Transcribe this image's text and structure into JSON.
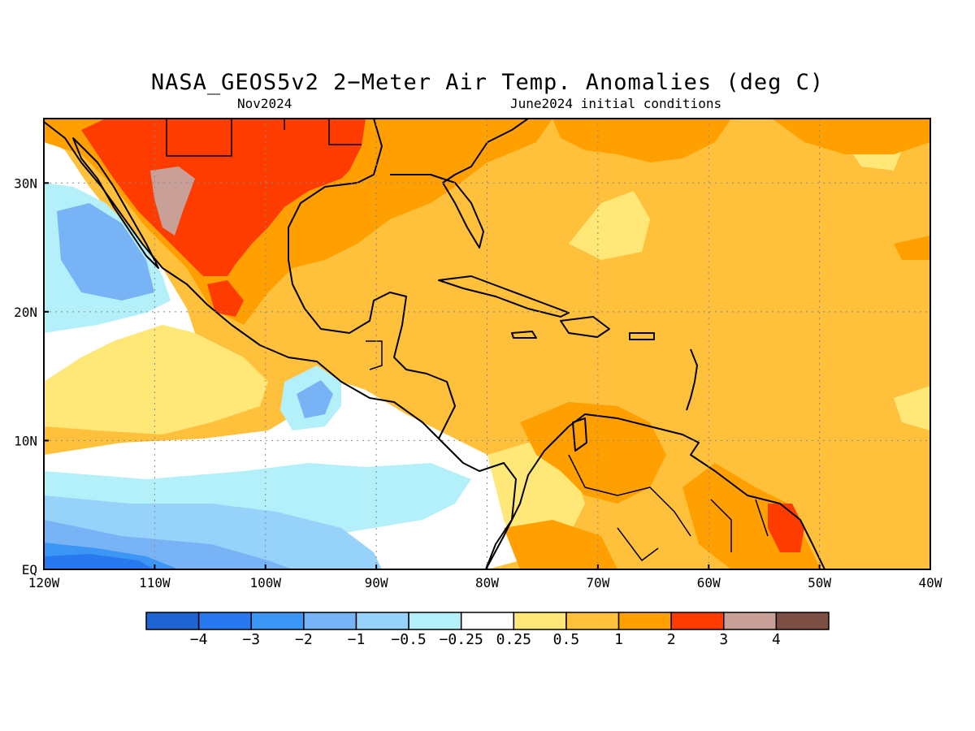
{
  "title": "NASA_GEOS5v2 2−Meter Air Temp. Anomalies (deg C)",
  "subtitle_left": "Nov2024",
  "subtitle_right": "June2024 initial conditions",
  "map": {
    "lon_range": [
      -120,
      -40
    ],
    "lat_range": [
      0,
      35
    ],
    "x_ticks": [
      {
        "lon": -120,
        "label": "120W"
      },
      {
        "lon": -110,
        "label": "110W"
      },
      {
        "lon": -100,
        "label": "100W"
      },
      {
        "lon": -90,
        "label": "90W"
      },
      {
        "lon": -80,
        "label": "80W"
      },
      {
        "lon": -70,
        "label": "70W"
      },
      {
        "lon": -60,
        "label": "60W"
      },
      {
        "lon": -50,
        "label": "50W"
      },
      {
        "lon": -40,
        "label": "40W"
      }
    ],
    "y_ticks": [
      {
        "lat": 0,
        "label": "EQ"
      },
      {
        "lat": 10,
        "label": "10N"
      },
      {
        "lat": 20,
        "label": "20N"
      },
      {
        "lat": 30,
        "label": "30N"
      }
    ],
    "grid": "dotted"
  },
  "colorbar": {
    "colors": [
      "#1e64d2",
      "#2878f0",
      "#3c96f5",
      "#78b4f5",
      "#96d2fa",
      "#b4f0fa",
      "#ffffff",
      "#ffe878",
      "#ffc03c",
      "#ffa000",
      "#ff3c00",
      "#c8a098",
      "#7d4e44"
    ],
    "labels": [
      "−4",
      "−3",
      "−2",
      "−1",
      "−0.5",
      "−0.25",
      "0.25",
      "0.5",
      "1",
      "2",
      "3",
      "4"
    ]
  }
}
